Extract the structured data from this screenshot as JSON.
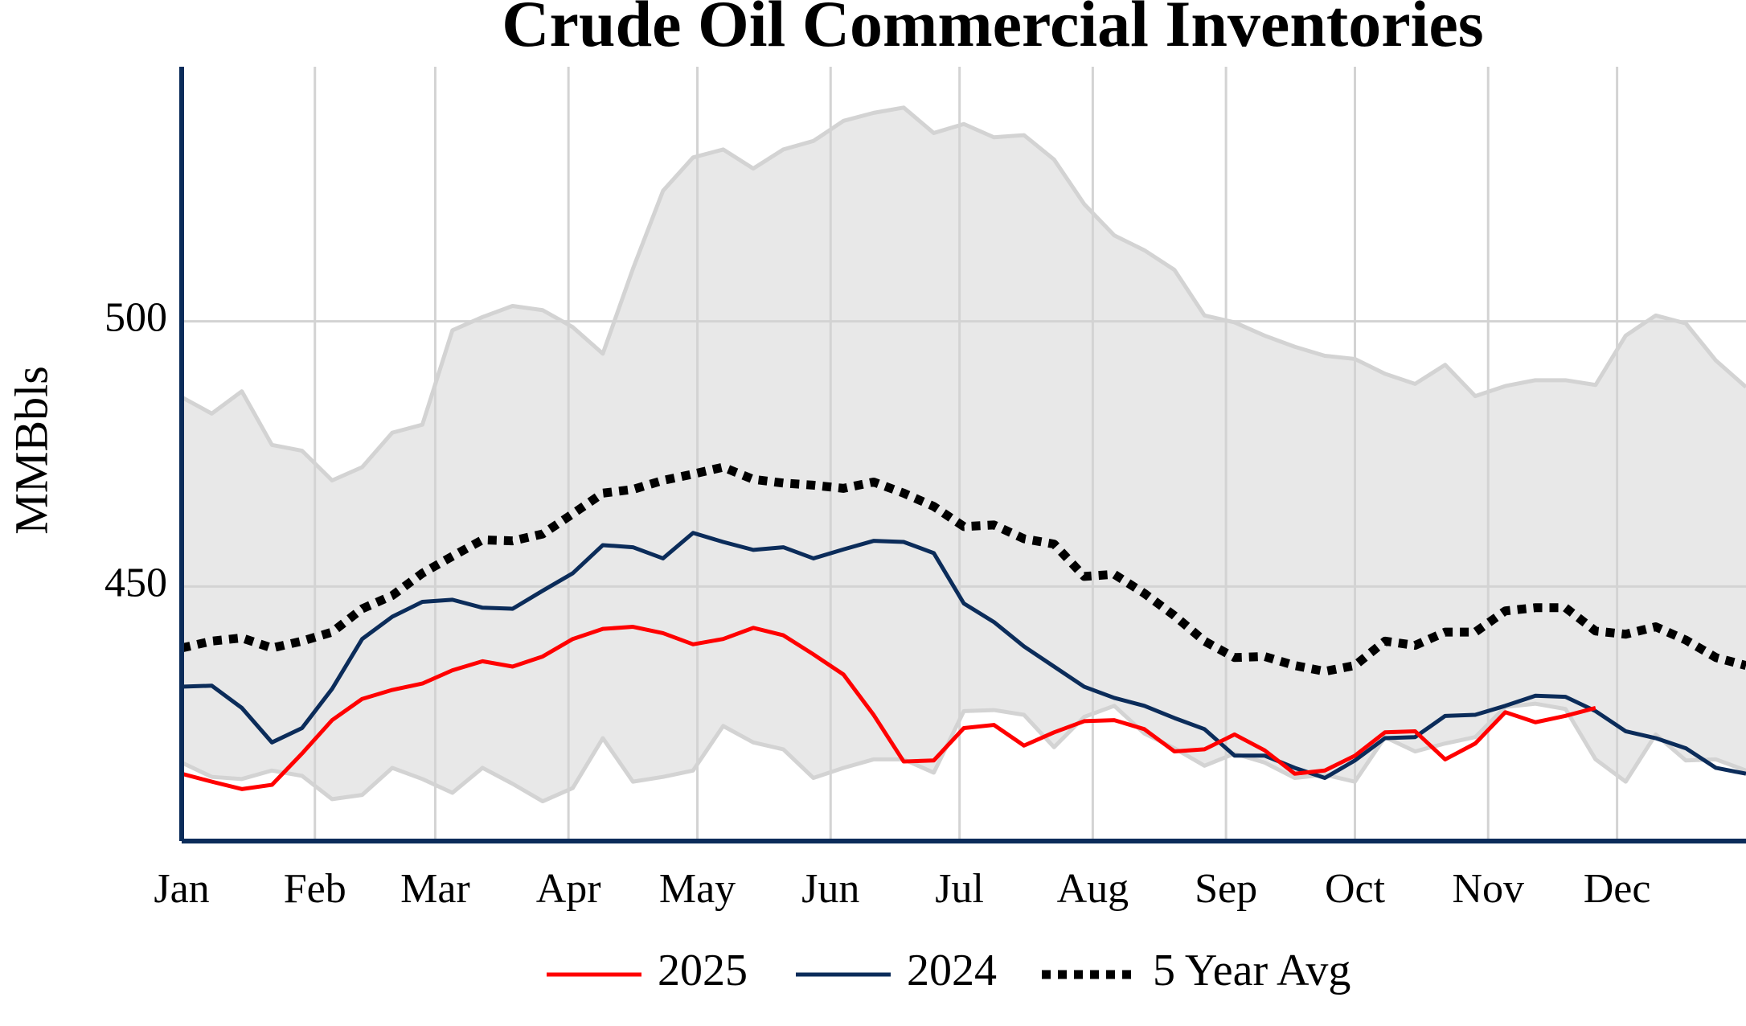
{
  "chart_data": {
    "type": "line",
    "title": "Crude Oil Commercial Inventories",
    "y_label": "MMBbls",
    "x": [
      0,
      7,
      14,
      21,
      28,
      35,
      42,
      49,
      56,
      63,
      70,
      77,
      84,
      91,
      98,
      105,
      112,
      119,
      126,
      133,
      140,
      147,
      154,
      161,
      168,
      175,
      182,
      189,
      196,
      203,
      210,
      217,
      224,
      231,
      238,
      245,
      252,
      259,
      266,
      273,
      280,
      287,
      294,
      301,
      308,
      315,
      322,
      329,
      336,
      343,
      350,
      357,
      364
    ],
    "xlim": [
      0,
      364
    ],
    "xticks": [
      {
        "value": 0,
        "label": "Jan"
      },
      {
        "value": 31,
        "label": "Feb"
      },
      {
        "value": 59,
        "label": "Mar"
      },
      {
        "value": 90,
        "label": "Apr"
      },
      {
        "value": 120,
        "label": "May"
      },
      {
        "value": 151,
        "label": "Jun"
      },
      {
        "value": 181,
        "label": "Jul"
      },
      {
        "value": 212,
        "label": "Aug"
      },
      {
        "value": 243,
        "label": "Sep"
      },
      {
        "value": 273,
        "label": "Oct"
      },
      {
        "value": 304,
        "label": "Nov"
      },
      {
        "value": 334,
        "label": "Dec"
      }
    ],
    "ylim": [
      402,
      548
    ],
    "yticks": [
      450,
      500
    ],
    "grid": true,
    "range": {
      "color": "#e8e8e8",
      "line_color": "#d3d3d3",
      "upper": [
        485.7,
        482.6,
        486.8,
        476.7,
        475.6,
        470.0,
        472.5,
        479.0,
        480.5,
        498.3,
        500.8,
        502.9,
        502.1,
        498.9,
        493.9,
        509.9,
        524.6,
        530.9,
        532.4,
        528.8,
        532.4,
        534.0,
        537.8,
        539.3,
        540.3,
        535.5,
        537.2,
        534.7,
        535.1,
        530.5,
        522.1,
        516.2,
        513.4,
        509.7,
        501.1,
        499.8,
        497.3,
        495.2,
        493.5,
        492.9,
        490.1,
        488.2,
        491.8,
        485.9,
        487.8,
        488.9,
        488.9,
        488.0,
        497.3,
        501.1,
        499.6,
        492.6,
        487.6
      ],
      "lower": [
        416.8,
        414.1,
        413.7,
        415.3,
        414.3,
        409.9,
        410.7,
        415.8,
        413.7,
        411.1,
        415.8,
        412.8,
        409.5,
        412.0,
        421.4,
        413.2,
        414.1,
        415.3,
        423.7,
        420.6,
        419.3,
        413.9,
        415.8,
        417.4,
        417.4,
        414.9,
        426.5,
        426.7,
        425.8,
        419.7,
        425.4,
        427.5,
        422.3,
        419.5,
        416.2,
        418.5,
        416.8,
        413.9,
        414.5,
        413.2,
        421.6,
        418.9,
        420.4,
        421.6,
        427.3,
        427.9,
        426.9,
        417.4,
        413.2,
        422.1,
        417.2,
        417.4,
        415.3
      ]
    },
    "series": [
      {
        "name": "2025",
        "color": "#ff0000",
        "dash": false,
        "values": [
          414.7,
          413.2,
          411.8,
          412.6,
          418.5,
          424.8,
          428.8,
          430.5,
          431.7,
          434.2,
          435.9,
          434.9,
          436.8,
          440.1,
          442.0,
          442.4,
          441.2,
          439.1,
          440.1,
          442.2,
          440.8,
          437.2,
          433.4,
          425.8,
          417.0,
          417.2,
          423.3,
          423.9,
          420.0,
          422.5,
          424.6,
          424.8,
          423.1,
          418.9,
          419.3,
          422.1,
          419.1,
          414.7,
          415.3,
          418.1,
          422.5,
          422.7,
          417.4,
          420.4,
          426.3,
          424.4,
          425.6,
          427.1,
          null,
          null,
          null,
          null,
          null
        ]
      },
      {
        "name": "2024",
        "color": "#0b2c5a",
        "dash": false,
        "values": [
          431.1,
          431.3,
          427.1,
          420.6,
          423.3,
          430.7,
          440.1,
          444.3,
          447.1,
          447.5,
          446.0,
          445.8,
          449.2,
          452.5,
          457.8,
          457.4,
          455.3,
          460.1,
          458.4,
          456.9,
          457.4,
          455.3,
          457.0,
          458.6,
          458.4,
          456.3,
          446.8,
          443.3,
          438.7,
          434.9,
          431.1,
          429.0,
          427.5,
          425.2,
          423.1,
          418.1,
          418.1,
          415.8,
          413.9,
          417.2,
          421.4,
          421.6,
          425.6,
          425.8,
          427.5,
          429.4,
          429.2,
          426.5,
          422.7,
          421.4,
          419.5,
          415.8,
          414.7
        ]
      },
      {
        "name": "5 Year Avg",
        "color": "#000000",
        "dash": true,
        "values": [
          438.4,
          439.7,
          440.3,
          438.4,
          439.7,
          441.4,
          445.8,
          448.3,
          452.5,
          455.7,
          458.8,
          458.6,
          459.9,
          463.7,
          467.6,
          468.3,
          470.0,
          471.2,
          472.5,
          470.2,
          469.5,
          469.1,
          468.5,
          469.7,
          467.6,
          465.1,
          461.3,
          461.6,
          459.0,
          458.0,
          451.9,
          452.3,
          448.7,
          444.5,
          439.7,
          436.6,
          436.8,
          435.1,
          434.0,
          435.1,
          439.7,
          438.9,
          441.4,
          441.4,
          445.4,
          446.0,
          446.0,
          441.6,
          441.0,
          442.4,
          439.9,
          436.6,
          435.1
        ]
      }
    ]
  }
}
